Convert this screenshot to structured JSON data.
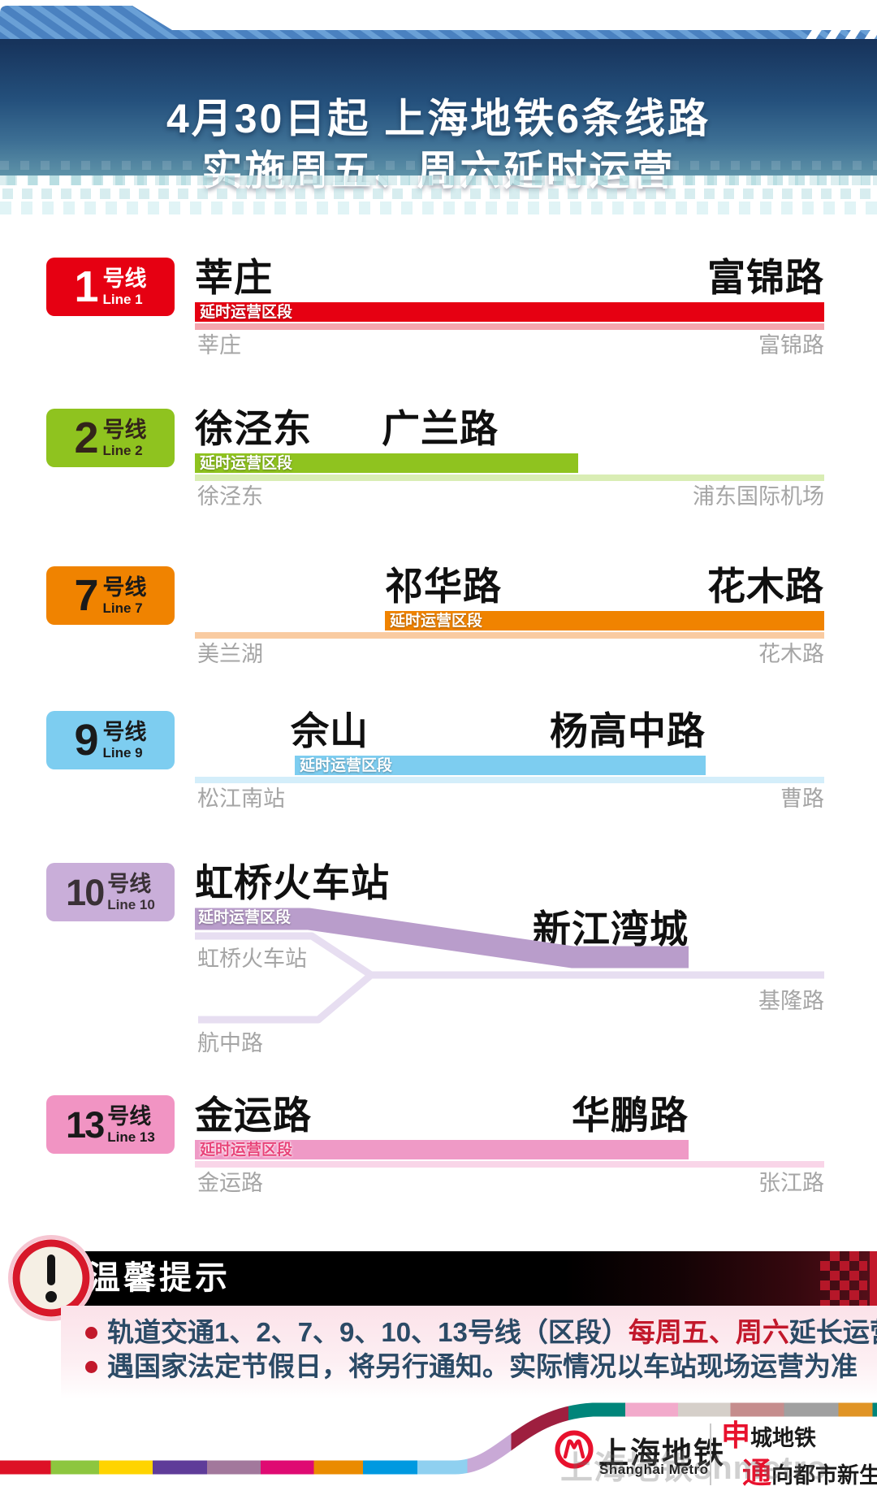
{
  "header": {
    "title_line1": "4月30日起  上海地铁6条线路",
    "title_line2": "实施周五、周六延时运营"
  },
  "lines": [
    {
      "num": "1",
      "suffix": "号线",
      "en": "Line 1",
      "badge_bg": "#e60012",
      "badge_fg": "#ffffff",
      "color": "#e60012",
      "color_light": "#f4a6ae",
      "seg_label": "延时运营区段",
      "big_left": "莘庄",
      "big_right": "富锦路",
      "gray_left": "莘庄",
      "gray_right": "富锦路"
    },
    {
      "num": "2",
      "suffix": "号线",
      "en": "Line 2",
      "badge_bg": "#8fc31f",
      "badge_fg": "#33241a",
      "color": "#8fc31f",
      "color_light": "#d9edb4",
      "seg_label": "延时运营区段",
      "big_left": "徐泾东",
      "big_right": "广兰路",
      "gray_left": "徐泾东",
      "gray_right": "浦东国际机场"
    },
    {
      "num": "7",
      "suffix": "号线",
      "en": "Line 7",
      "badge_bg": "#f08300",
      "badge_fg": "#1a1a1a",
      "color": "#f08300",
      "color_light": "#f9cba1",
      "seg_label": "延时运营区段",
      "big_left": "祁华路",
      "big_right": "花木路",
      "gray_left": "美兰湖",
      "gray_right": "花木路"
    },
    {
      "num": "9",
      "suffix": "号线",
      "en": "Line 9",
      "badge_bg": "#7dcdf0",
      "badge_fg": "#1a1a1a",
      "color": "#7dcdf0",
      "color_light": "#d4eefa",
      "seg_label": "延时运营区段",
      "big_left": "佘山",
      "big_right": "杨高中路",
      "gray_left": "松江南站",
      "gray_right": "曹路"
    },
    {
      "num": "10",
      "suffix": "号线",
      "en": "Line 10",
      "badge_bg": "#c9aed9",
      "badge_fg": "#3a3136",
      "color": "#b99dcb",
      "color_light": "#e7def1",
      "seg_label": "延时运营区段",
      "big_left": "虹桥火车站",
      "big_right": "新江湾城",
      "gray_left": "虹桥火车站",
      "gray_right": "基隆路",
      "gray_branch": "航中路"
    },
    {
      "num": "13",
      "suffix": "号线",
      "en": "Line 13",
      "badge_bg": "#f194c3",
      "badge_fg": "#1a1a1a",
      "color": "#ef9ac6",
      "color_light": "#f9d5e8",
      "seg_label": "延时运营区段",
      "big_left": "金运路",
      "big_right": "华鹏路",
      "gray_left": "金运路",
      "gray_right": "张江路"
    }
  ],
  "notice": {
    "heading": "温馨提示",
    "bullet1_pre": "轨道交通1、2、7、9、10、13号线（区段）",
    "bullet1_em": "每周五、周六",
    "bullet1_post": "延长运营时间。",
    "bullet2": "遇国家法定节假日，将另行通知。实际情况以车站现场运营为准",
    "text_color": "#2b4a66",
    "em_color": "#c2182b"
  },
  "footer": {
    "metro_cn": "上海地铁",
    "metro_en": "Shanghai Metro",
    "slogan_em1": "申",
    "slogan_rest1": "城地铁",
    "slogan_em2": "通",
    "slogan_rest2": "向都市新生活",
    "watermark": "上海地铁shmetro",
    "logo_red": "#e8112d",
    "ribbon": [
      {
        "c": "#dd1126",
        "to": 0.058
      },
      {
        "c": "#8dc63f",
        "to": 0.113
      },
      {
        "c": "#ffd400",
        "to": 0.174
      },
      {
        "c": "#5f3c99",
        "to": 0.236
      },
      {
        "c": "#a2789c",
        "to": 0.297
      },
      {
        "c": "#df0a72",
        "to": 0.358
      },
      {
        "c": "#ea8b00",
        "to": 0.414
      },
      {
        "c": "#0099e0",
        "to": 0.476
      },
      {
        "c": "#8fd0f0",
        "to": 0.533
      },
      {
        "c": "#c9a9d6",
        "to": 0.583
      },
      {
        "c": "#9e1f3f",
        "to": 0.648
      },
      {
        "c": "#00857a",
        "to": 0.713
      },
      {
        "c": "#f2aacb",
        "to": 0.773
      },
      {
        "c": "#d5cfc9",
        "to": 0.833
      },
      {
        "c": "#c58d8d",
        "to": 0.894
      },
      {
        "c": "#a0a0a0",
        "to": 0.956
      },
      {
        "c": "#e09426",
        "to": 0.995
      },
      {
        "c": "#00857a",
        "to": 1
      }
    ]
  }
}
